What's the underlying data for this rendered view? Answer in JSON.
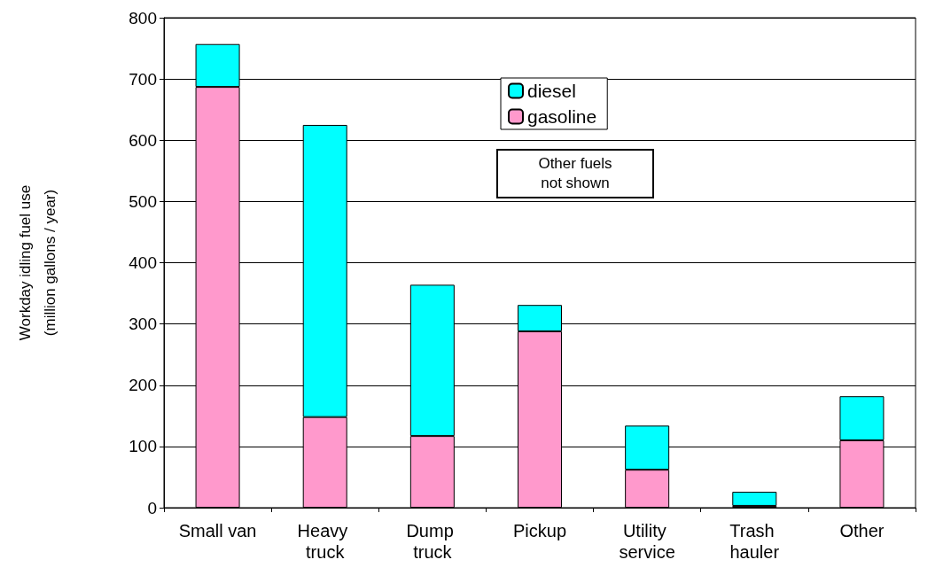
{
  "chart_data": {
    "type": "bar",
    "ylabel": "Workday idling fuel use\n(million gallons / year)",
    "categories": [
      "Small van",
      "Heavy truck",
      "Dump truck",
      "Pickup",
      "Utility service",
      "Trash hauler",
      "Other"
    ],
    "stacked": true,
    "series": [
      {
        "name": "gasoline",
        "color": "#ff99cc",
        "values": [
          687,
          148,
          117,
          288,
          62,
          3,
          110
        ]
      },
      {
        "name": "diesel",
        "color": "#00ffff",
        "values": [
          70,
          477,
          247,
          43,
          72,
          23,
          72
        ]
      }
    ],
    "ylim": [
      0,
      800
    ],
    "yticks": [
      0,
      100,
      200,
      300,
      400,
      500,
      600,
      700,
      800
    ],
    "grid": "y",
    "legend": "top",
    "annotations": [
      "Other fuels\nnot shown"
    ]
  }
}
